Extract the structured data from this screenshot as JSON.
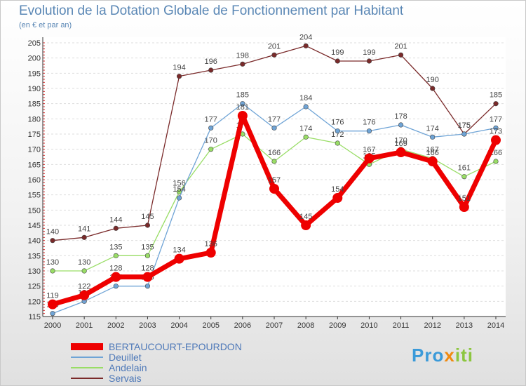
{
  "title": "Evolution de la Dotation Globale de Fonctionnement par Habitant",
  "subtitle": "(en € et par an)",
  "logo": {
    "part1": "Pro",
    "part2": "x",
    "part3": "iti"
  },
  "chart_data": {
    "type": "line",
    "x": [
      2000,
      2001,
      2002,
      2003,
      2004,
      2005,
      2006,
      2007,
      2008,
      2009,
      2010,
      2011,
      2012,
      2013,
      2014
    ],
    "ylim": [
      115,
      205
    ],
    "yticks": [
      115,
      120,
      125,
      130,
      135,
      140,
      145,
      150,
      155,
      160,
      165,
      170,
      175,
      180,
      185,
      190,
      195,
      200,
      205
    ],
    "series": [
      {
        "name": "BERTAUCOURT-EPOURDON",
        "color": "#ee0000",
        "values": [
          119,
          122,
          128,
          128,
          134,
          136,
          181,
          157,
          145,
          154,
          167,
          169,
          166,
          151,
          173
        ]
      },
      {
        "name": "Deuillet",
        "color": "#6fa4d6",
        "values": [
          116,
          120,
          125,
          125,
          154,
          177,
          185,
          177,
          184,
          176,
          176,
          178,
          174,
          175,
          177
        ]
      },
      {
        "name": "Andelain",
        "color": "#99dd66",
        "values": [
          130,
          130,
          135,
          135,
          156,
          170,
          175,
          166,
          174,
          172,
          165,
          170,
          167,
          161,
          166
        ]
      },
      {
        "name": "Servais",
        "color": "#7a2a2a",
        "values": [
          140,
          141,
          144,
          145,
          194,
          196,
          198,
          201,
          204,
          199,
          199,
          201,
          190,
          175,
          185
        ]
      }
    ]
  }
}
